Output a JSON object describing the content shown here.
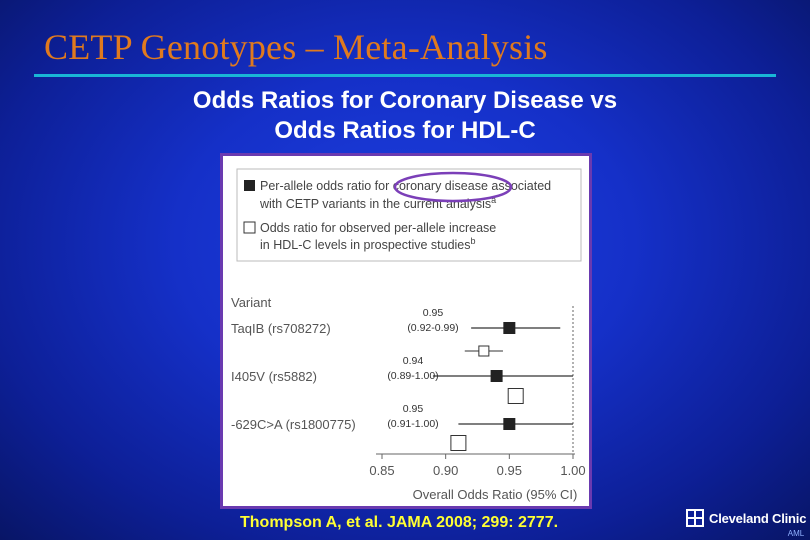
{
  "slide": {
    "title": "CETP Genotypes – Meta-Analysis",
    "subtitle_line1": "Odds Ratios for Coronary Disease vs",
    "subtitle_line2": "Odds Ratios for HDL-C",
    "citation": "Thompson A, et al. JAMA 2008; 299: 2777.",
    "logo_name": "Cleveland Clinic",
    "logo_sub": "AML"
  },
  "colors": {
    "title": "#e07a1e",
    "rule": "#19b6d6",
    "frame": "#6a3ab0",
    "highlight_oval": "#7b3fb8",
    "citation": "#ffff33",
    "logo_red": "#d1252a"
  },
  "chart_data": {
    "type": "forest",
    "legend": {
      "filled_line1": "Per-allele odds ratio for coronary disease associated",
      "filled_line2": "with CETP variants in the current analysis",
      "filled_sup": "a",
      "open_line1": "Odds ratio for observed per-allele increase",
      "open_line2": "in HDL-C levels in prospective studies",
      "open_sup": "b"
    },
    "variant_header": "Variant",
    "xlabel": "Overall Odds Ratio (95% CI)",
    "xlim": [
      0.85,
      1.0
    ],
    "ticks": [
      0.85,
      0.9,
      0.95,
      1.0
    ],
    "tick_labels": [
      "0.85",
      "0.90",
      "0.95",
      "1.00"
    ],
    "reference_line": 1.0,
    "variants": [
      {
        "name": "TaqIB (rs708272)",
        "or": 0.95,
        "lo": 0.92,
        "hi": 0.99,
        "annotation_value": "0.95",
        "annotation_ci": "(0.92-0.99)",
        "hdl_or": 0.93,
        "hdl_lo": 0.915,
        "hdl_hi": 0.945
      },
      {
        "name": "I405V (rs5882)",
        "or": 0.94,
        "lo": 0.89,
        "hi": 1.0,
        "annotation_value": "0.94",
        "annotation_ci": "(0.89-1.00)",
        "hdl_or": 0.955,
        "hdl_lo": null,
        "hdl_hi": null
      },
      {
        "name": "-629C>A (rs1800775)",
        "or": 0.95,
        "lo": 0.91,
        "hi": 1.0,
        "annotation_value": "0.95",
        "annotation_ci": "(0.91-1.00)",
        "hdl_or": 0.91,
        "hdl_lo": null,
        "hdl_hi": null
      }
    ]
  }
}
